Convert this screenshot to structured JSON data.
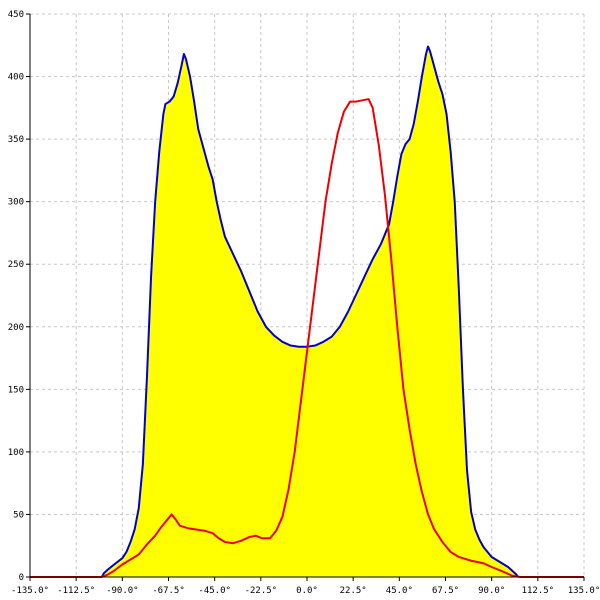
{
  "chart_data": {
    "type": "area",
    "title": "",
    "xlabel": "",
    "ylabel": "",
    "xlim": [
      -135,
      135
    ],
    "ylim": [
      0,
      450
    ],
    "grid": true,
    "x_ticks": [
      -135,
      -112.5,
      -90,
      -67.5,
      -45,
      -22.5,
      0,
      22.5,
      45,
      67.5,
      90,
      112.5,
      135
    ],
    "x_tick_labels": [
      "-135.0°",
      "-112.5°",
      "-90.0°",
      "-67.5°",
      "-45.0°",
      "-22.5°",
      "0.0°",
      "22.5°",
      "45.0°",
      "67.5°",
      "90.0°",
      "112.5°",
      "135.0°"
    ],
    "y_ticks": [
      0,
      50,
      100,
      150,
      200,
      250,
      300,
      350,
      400,
      450
    ],
    "y_tick_labels": [
      "0",
      "50",
      "100",
      "150",
      "200",
      "250",
      "300",
      "350",
      "400",
      "450"
    ],
    "colors": {
      "fill": "#ffff00",
      "blue": "#0000cc",
      "red": "#ee0000",
      "grid": "#c8c8c8"
    },
    "series": [
      {
        "color": "#0000cc",
        "filled": true,
        "points": [
          [
            -100,
            0
          ],
          [
            -99,
            3
          ],
          [
            -97,
            6
          ],
          [
            -94,
            10
          ],
          [
            -90,
            15
          ],
          [
            -88,
            20
          ],
          [
            -86,
            28
          ],
          [
            -84,
            38
          ],
          [
            -82,
            55
          ],
          [
            -80,
            90
          ],
          [
            -78,
            160
          ],
          [
            -76,
            240
          ],
          [
            -74,
            300
          ],
          [
            -72,
            340
          ],
          [
            -70,
            370
          ],
          [
            -69,
            378
          ],
          [
            -67,
            380
          ],
          [
            -65,
            384
          ],
          [
            -63,
            395
          ],
          [
            -61,
            410
          ],
          [
            -60,
            418
          ],
          [
            -59,
            414
          ],
          [
            -57,
            400
          ],
          [
            -55,
            380
          ],
          [
            -53,
            358
          ],
          [
            -50,
            340
          ],
          [
            -48,
            328
          ],
          [
            -46,
            318
          ],
          [
            -44,
            300
          ],
          [
            -42,
            285
          ],
          [
            -40,
            272
          ],
          [
            -36,
            258
          ],
          [
            -32,
            244
          ],
          [
            -28,
            228
          ],
          [
            -24,
            212
          ],
          [
            -20,
            200
          ],
          [
            -16,
            193
          ],
          [
            -12,
            188
          ],
          [
            -8,
            185
          ],
          [
            -4,
            184
          ],
          [
            0,
            184
          ],
          [
            4,
            185
          ],
          [
            8,
            188
          ],
          [
            12,
            192
          ],
          [
            16,
            200
          ],
          [
            20,
            212
          ],
          [
            24,
            226
          ],
          [
            28,
            240
          ],
          [
            32,
            254
          ],
          [
            36,
            266
          ],
          [
            40,
            282
          ],
          [
            42,
            300
          ],
          [
            44,
            320
          ],
          [
            46,
            338
          ],
          [
            48,
            346
          ],
          [
            50,
            350
          ],
          [
            52,
            362
          ],
          [
            54,
            380
          ],
          [
            56,
            400
          ],
          [
            58,
            418
          ],
          [
            59,
            424
          ],
          [
            60,
            420
          ],
          [
            62,
            408
          ],
          [
            64,
            396
          ],
          [
            66,
            386
          ],
          [
            68,
            370
          ],
          [
            70,
            340
          ],
          [
            72,
            300
          ],
          [
            74,
            230
          ],
          [
            76,
            150
          ],
          [
            78,
            85
          ],
          [
            80,
            52
          ],
          [
            82,
            38
          ],
          [
            84,
            30
          ],
          [
            86,
            24
          ],
          [
            88,
            20
          ],
          [
            90,
            16
          ],
          [
            94,
            12
          ],
          [
            98,
            8
          ],
          [
            100,
            5
          ],
          [
            102,
            2
          ],
          [
            103,
            0
          ]
        ]
      },
      {
        "color": "#ee0000",
        "filled": false,
        "points": [
          [
            -135,
            0
          ],
          [
            -100,
            0
          ],
          [
            -97,
            2
          ],
          [
            -94,
            5
          ],
          [
            -90,
            10
          ],
          [
            -86,
            14
          ],
          [
            -82,
            18
          ],
          [
            -78,
            26
          ],
          [
            -74,
            33
          ],
          [
            -71,
            40
          ],
          [
            -68,
            46
          ],
          [
            -66,
            50
          ],
          [
            -64,
            46
          ],
          [
            -62,
            41
          ],
          [
            -58,
            39
          ],
          [
            -54,
            38
          ],
          [
            -50,
            37
          ],
          [
            -46,
            35
          ],
          [
            -43,
            31
          ],
          [
            -40,
            28
          ],
          [
            -36,
            27
          ],
          [
            -32,
            29
          ],
          [
            -28,
            32
          ],
          [
            -25,
            33
          ],
          [
            -22,
            31
          ],
          [
            -18,
            31
          ],
          [
            -15,
            37
          ],
          [
            -12,
            48
          ],
          [
            -9,
            70
          ],
          [
            -6,
            100
          ],
          [
            -3,
            140
          ],
          [
            0,
            180
          ],
          [
            3,
            220
          ],
          [
            6,
            260
          ],
          [
            9,
            300
          ],
          [
            12,
            330
          ],
          [
            15,
            355
          ],
          [
            18,
            372
          ],
          [
            21,
            380
          ],
          [
            24,
            380
          ],
          [
            27,
            381
          ],
          [
            30,
            382
          ],
          [
            32,
            375
          ],
          [
            35,
            345
          ],
          [
            38,
            305
          ],
          [
            41,
            255
          ],
          [
            44,
            200
          ],
          [
            47,
            150
          ],
          [
            50,
            118
          ],
          [
            53,
            90
          ],
          [
            56,
            68
          ],
          [
            59,
            50
          ],
          [
            62,
            38
          ],
          [
            66,
            28
          ],
          [
            70,
            20
          ],
          [
            74,
            16
          ],
          [
            80,
            13
          ],
          [
            86,
            11
          ],
          [
            90,
            8
          ],
          [
            96,
            4
          ],
          [
            100,
            1
          ],
          [
            104,
            0
          ],
          [
            135,
            0
          ]
        ]
      }
    ]
  }
}
